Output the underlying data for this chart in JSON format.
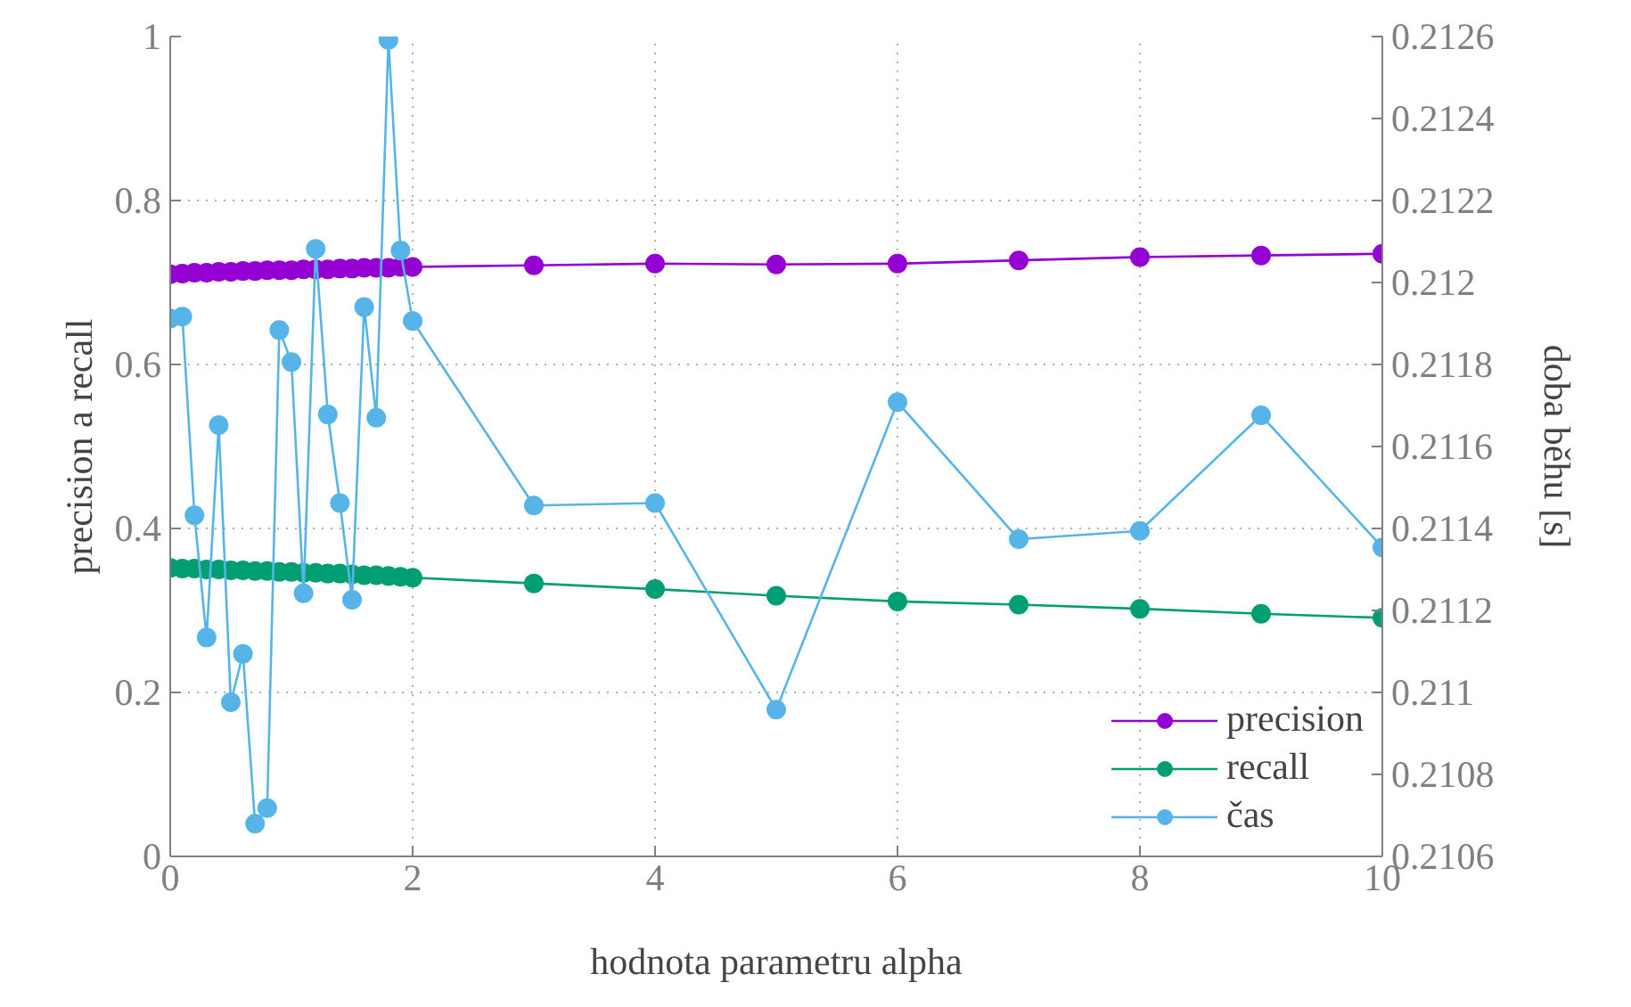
{
  "chart_data": {
    "type": "line",
    "xlabel": "hodnota parametru alpha",
    "ylabel": "precision a recall",
    "y2label": "doba běhu [s]",
    "xlim": [
      0,
      10
    ],
    "xticks": [
      0,
      2,
      4,
      6,
      8,
      10
    ],
    "ylim": [
      0,
      1
    ],
    "yticks": [
      0,
      0.2,
      0.4,
      0.6,
      0.8,
      1
    ],
    "y2lim": [
      0.2106,
      0.2126
    ],
    "y2ticks": [
      0.2106,
      0.2108,
      0.211,
      0.2112,
      0.2114,
      0.2116,
      0.2118,
      0.212,
      0.2122,
      0.2124,
      0.2126
    ],
    "grid": true,
    "legend": "bottom right",
    "marker": "circle",
    "line_style": "solid",
    "series": [
      {
        "name": "precision",
        "color": "#9400d3",
        "x": [
          0,
          0.1,
          0.2,
          0.3,
          0.4,
          0.5,
          0.6,
          0.7,
          0.8,
          0.9,
          1,
          1.1,
          1.2,
          1.3,
          1.4,
          1.5,
          1.6,
          1.7,
          1.8,
          1.9,
          2,
          3,
          4,
          5,
          6,
          7,
          8,
          9,
          10
        ],
        "values": [
          0.71,
          0.711,
          0.712,
          0.712,
          0.713,
          0.713,
          0.714,
          0.714,
          0.715,
          0.715,
          0.715,
          0.716,
          0.716,
          0.716,
          0.717,
          0.717,
          0.718,
          0.718,
          0.718,
          0.719,
          0.719,
          0.721,
          0.723,
          0.722,
          0.723,
          0.727,
          0.731,
          0.733,
          0.735
        ]
      },
      {
        "name": "recall",
        "color": "#009e73",
        "x": [
          0,
          0.1,
          0.2,
          0.3,
          0.4,
          0.5,
          0.6,
          0.7,
          0.8,
          0.9,
          1,
          1.1,
          1.2,
          1.3,
          1.4,
          1.5,
          1.6,
          1.7,
          1.8,
          1.9,
          2,
          3,
          4,
          5,
          6,
          7,
          8,
          9,
          10
        ],
        "values": [
          0.352,
          0.351,
          0.351,
          0.35,
          0.35,
          0.349,
          0.349,
          0.348,
          0.348,
          0.347,
          0.347,
          0.346,
          0.346,
          0.345,
          0.345,
          0.344,
          0.343,
          0.343,
          0.342,
          0.341,
          0.34,
          0.333,
          0.326,
          0.318,
          0.311,
          0.307,
          0.302,
          0.296,
          0.291
        ]
      },
      {
        "name": "čas",
        "color": "#56b4e9",
        "axis": "y2",
        "x": [
          0,
          0.1,
          0.2,
          0.3,
          0.4,
          0.5,
          0.6,
          0.7,
          0.8,
          0.9,
          1,
          1.1,
          1.2,
          1.3,
          1.4,
          1.5,
          1.6,
          1.7,
          1.8,
          1.9,
          2,
          3,
          4,
          5,
          6,
          7,
          8,
          9,
          10
        ],
        "values": [
          0.211912,
          0.211917,
          0.211432,
          0.211134,
          0.211652,
          0.210976,
          0.211094,
          0.21068,
          0.210718,
          0.211884,
          0.211806,
          0.211242,
          0.212082,
          0.211678,
          0.211462,
          0.211226,
          0.21194,
          0.21167,
          0.212592,
          0.212078,
          0.211906,
          0.211456,
          0.211462,
          0.210958,
          0.211708,
          0.211374,
          0.211394,
          0.211676,
          0.211354
        ]
      }
    ]
  }
}
